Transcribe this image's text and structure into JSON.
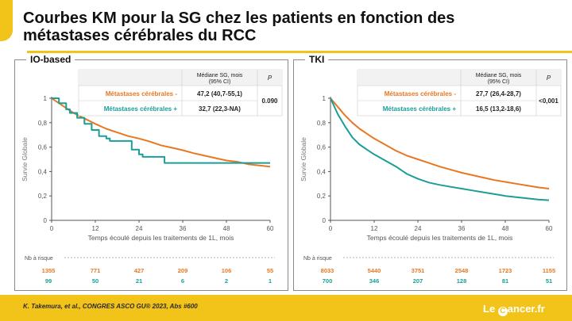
{
  "slide": {
    "title_line1": "Courbes KM pour la SG chez les patients en fonction des",
    "title_line2": "métastases cérébrales du RCC",
    "citation": "K. Takemura, et al., CONGRES ASCO GU® 2023, Abs #600",
    "logo": {
      "prefix": "Le",
      "c": "C",
      "suffix": "ancer.fr"
    }
  },
  "colors": {
    "orange": "#e87722",
    "teal": "#1a9e96",
    "accent": "#f2c318"
  },
  "chart_data": [
    {
      "type": "line",
      "panel": "IO-based",
      "xlabel": "Temps écoulé depuis les traitements de 1L, mois",
      "ylabel": "Survie Globale",
      "xlim": [
        0,
        60
      ],
      "ylim": [
        0,
        1
      ],
      "xticks": [
        0,
        12,
        24,
        36,
        48,
        60
      ],
      "yticks": [
        0,
        0.2,
        0.4,
        0.6,
        0.8,
        1
      ],
      "ytick_labels": [
        "0",
        "0,2",
        "0,4",
        "0,6",
        "0,8",
        "1"
      ],
      "table": {
        "header_median": [
          "Médiane SG, mois",
          "(95% CI)"
        ],
        "header_p": "P",
        "rows": [
          {
            "label": "Métastases cérébrales -",
            "median": "47,2 (40,7-55,1)",
            "color": "#e87722"
          },
          {
            "label": "Métastases cérébrales +",
            "median": "32,7 (22,3-NA)",
            "color": "#1a9e96"
          }
        ],
        "p_value": "0.090"
      },
      "series": [
        {
          "name": "Métastases cérébrales -",
          "color": "#e87722",
          "x": [
            0,
            2,
            4,
            6,
            8,
            10,
            12,
            15,
            18,
            21,
            24,
            27,
            30,
            33,
            36,
            39,
            42,
            45,
            48,
            51,
            54,
            57,
            60
          ],
          "y": [
            1,
            0.96,
            0.92,
            0.88,
            0.85,
            0.82,
            0.79,
            0.75,
            0.72,
            0.69,
            0.67,
            0.645,
            0.615,
            0.595,
            0.575,
            0.55,
            0.53,
            0.51,
            0.49,
            0.48,
            0.46,
            0.45,
            0.44
          ]
        },
        {
          "name": "Métastases cérébrales +",
          "color": "#1a9e96",
          "step": true,
          "x": [
            0,
            2,
            4,
            5,
            7,
            9,
            11,
            13,
            15,
            16,
            18,
            22,
            24,
            25,
            30,
            31,
            48,
            60
          ],
          "y": [
            1,
            0.96,
            0.91,
            0.88,
            0.84,
            0.79,
            0.74,
            0.69,
            0.67,
            0.65,
            0.65,
            0.58,
            0.54,
            0.52,
            0.52,
            0.47,
            0.47,
            0.47
          ]
        }
      ],
      "risk": {
        "label": "Nb à risque",
        "rows": [
          {
            "color": "#e87722",
            "values": [
              "1355",
              "771",
              "427",
              "209",
              "106",
              "55"
            ]
          },
          {
            "color": "#1a9e96",
            "values": [
              "99",
              "50",
              "21",
              "6",
              "2",
              "1"
            ]
          }
        ]
      }
    },
    {
      "type": "line",
      "panel": "TKI",
      "xlabel": "Temps écoulé depuis les traitements de 1L, mois",
      "ylabel": "Survie Globale",
      "xlim": [
        0,
        60
      ],
      "ylim": [
        0,
        1
      ],
      "xticks": [
        0,
        12,
        24,
        36,
        48,
        60
      ],
      "yticks": [
        0,
        0.2,
        0.4,
        0.6,
        0.8,
        1
      ],
      "ytick_labels": [
        "0",
        "0,2",
        "0,4",
        "0,6",
        "0,8",
        "1"
      ],
      "table": {
        "header_median": [
          "Médiane SG, mois",
          "(95% CI)"
        ],
        "header_p": "P",
        "rows": [
          {
            "label": "Métastases cérébrales -",
            "median": "27,7 (26,4-28,7)",
            "color": "#e87722"
          },
          {
            "label": "Métastases cérébrales +",
            "median": "16,5 (13,2-18,6)",
            "color": "#1a9e96"
          }
        ],
        "p_value": "<0,001"
      },
      "series": [
        {
          "name": "Métastases cérébrales -",
          "color": "#e87722",
          "x": [
            0,
            2,
            4,
            6,
            8,
            10,
            12,
            15,
            18,
            21,
            24,
            27,
            30,
            33,
            36,
            39,
            42,
            45,
            48,
            51,
            54,
            57,
            60
          ],
          "y": [
            1,
            0.93,
            0.86,
            0.8,
            0.75,
            0.71,
            0.67,
            0.62,
            0.57,
            0.53,
            0.5,
            0.47,
            0.44,
            0.415,
            0.39,
            0.37,
            0.35,
            0.33,
            0.315,
            0.3,
            0.285,
            0.27,
            0.26
          ]
        },
        {
          "name": "Métastases cérébrales +",
          "color": "#1a9e96",
          "x": [
            0,
            2,
            4,
            6,
            8,
            10,
            12,
            15,
            18,
            21,
            24,
            27,
            30,
            33,
            36,
            39,
            42,
            45,
            48,
            51,
            54,
            57,
            60
          ],
          "y": [
            1,
            0.87,
            0.77,
            0.68,
            0.62,
            0.58,
            0.54,
            0.49,
            0.44,
            0.38,
            0.34,
            0.31,
            0.29,
            0.275,
            0.26,
            0.245,
            0.23,
            0.215,
            0.2,
            0.19,
            0.18,
            0.17,
            0.165
          ]
        }
      ],
      "risk": {
        "label": "Nb à risque",
        "rows": [
          {
            "color": "#e87722",
            "values": [
              "8033",
              "5440",
              "3751",
              "2548",
              "1723",
              "1155"
            ]
          },
          {
            "color": "#1a9e96",
            "values": [
              "700",
              "346",
              "207",
              "128",
              "81",
              "51"
            ]
          }
        ]
      }
    }
  ]
}
